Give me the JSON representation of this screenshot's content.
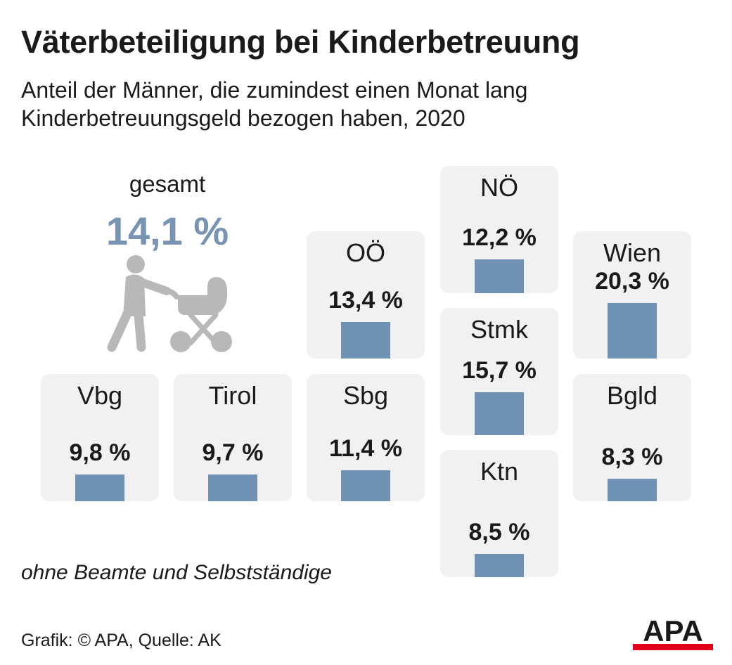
{
  "title": "Väterbeteiligung bei Kinderbetreuung",
  "subtitle_line1": "Anteil der Männer, die zumindest einen Monat lang",
  "subtitle_line2": "Kinderbetreuungsgeld bezogen haben, 2020",
  "total": {
    "label": "gesamt",
    "value_text": "14,1 %",
    "value": 14.1
  },
  "footnote": "ohne Beamte und Selbstständige",
  "credit": "Grafik: © APA, Quelle: AK",
  "logo_text": "APA",
  "colors": {
    "bar": "#6f91b3",
    "total": "#7894b2",
    "tile": "#f1f1f1",
    "icon": "#b8b8b8",
    "logo_red": "#e2001a"
  },
  "chart_data": {
    "type": "bar",
    "categories": [
      "Vbg",
      "Tirol",
      "Sbg",
      "OÖ",
      "NÖ",
      "Stmk",
      "Ktn",
      "Wien",
      "Bgld"
    ],
    "values": [
      9.8,
      9.7,
      11.4,
      13.4,
      12.2,
      15.7,
      8.5,
      20.3,
      8.3
    ],
    "value_labels": [
      "9,8 %",
      "9,7 %",
      "11,4 %",
      "13,4 %",
      "12,2 %",
      "15,7 %",
      "8,5 %",
      "20,3 %",
      "8,3 %"
    ],
    "unit": "%",
    "layout": "tile map of Austrian federal states"
  }
}
